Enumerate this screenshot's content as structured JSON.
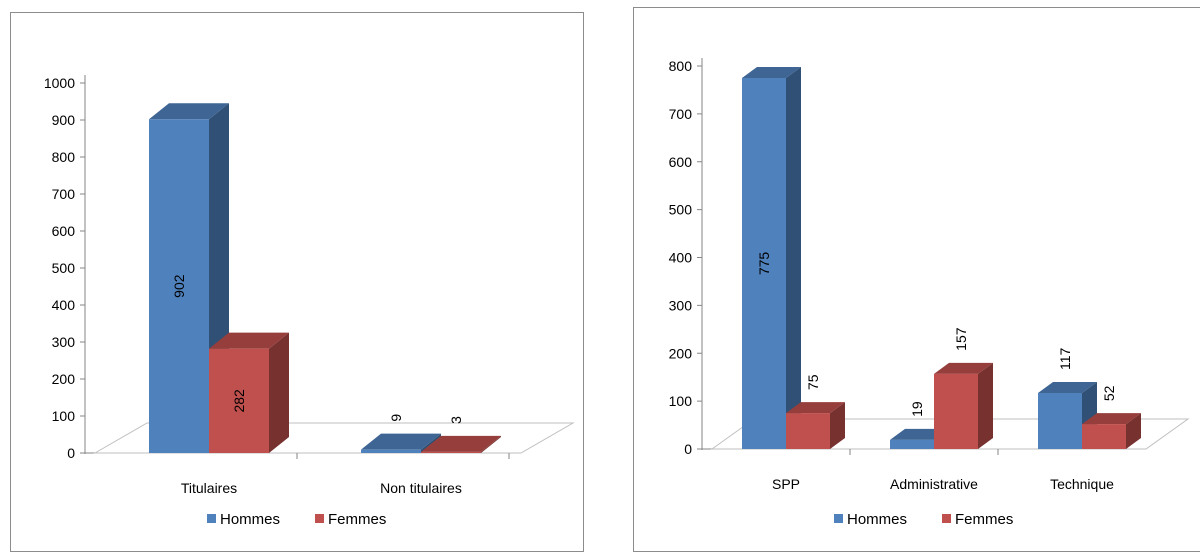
{
  "chart_data": [
    {
      "type": "bar",
      "title": "",
      "categories": [
        "Titulaires",
        "Non titulaires"
      ],
      "series": [
        {
          "name": "Hommes",
          "values": [
            902,
            9
          ],
          "color": "#4f81bd"
        },
        {
          "name": "Femmes",
          "values": [
            282,
            3
          ],
          "color": "#c0504d"
        }
      ],
      "ylim": [
        0,
        1000
      ],
      "yticks": [
        "0",
        "100",
        "200",
        "300",
        "400",
        "500",
        "600",
        "700",
        "800",
        "900",
        "1000"
      ],
      "data_labels": [
        [
          "902",
          "9"
        ],
        [
          "282",
          "3"
        ]
      ],
      "legend_position": "bottom",
      "grid": false,
      "style": "3d-column"
    },
    {
      "type": "bar",
      "title": "",
      "categories": [
        "SPP",
        "Administrative",
        "Technique"
      ],
      "series": [
        {
          "name": "Hommes",
          "values": [
            775,
            19,
            117
          ],
          "color": "#4f81bd"
        },
        {
          "name": "Femmes",
          "values": [
            75,
            157,
            52
          ],
          "color": "#c0504d"
        }
      ],
      "ylim": [
        0,
        800
      ],
      "yticks": [
        "0",
        "100",
        "200",
        "300",
        "400",
        "500",
        "600",
        "700",
        "800"
      ],
      "data_labels": [
        [
          "775",
          "19",
          "117"
        ],
        [
          "75",
          "157",
          "52"
        ]
      ],
      "legend_position": "bottom",
      "grid": false,
      "style": "3d-column"
    }
  ]
}
